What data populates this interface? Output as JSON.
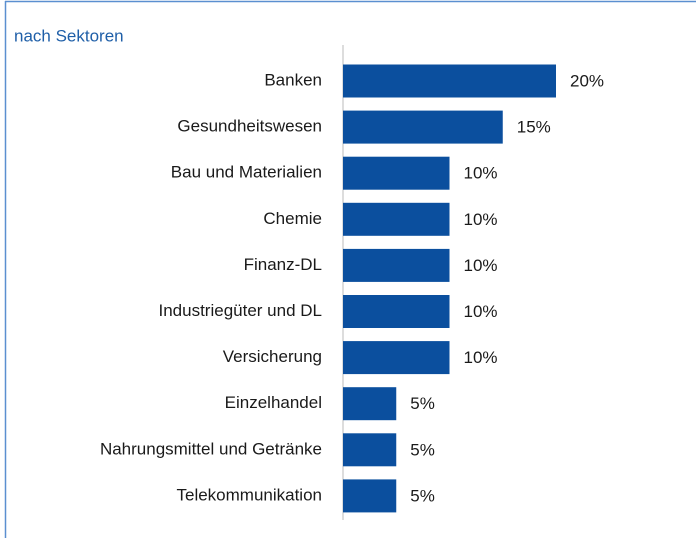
{
  "chart_data": {
    "type": "barh",
    "title": "nach Sektoren",
    "categories": [
      "Banken",
      "Gesundheitswesen",
      "Bau und Materialien",
      "Chemie",
      "Finanz-DL",
      "Industriegüter und DL",
      "Versicherung",
      "Einzelhandel",
      "Nahrungsmittel und Getränke",
      "Telekommunikation"
    ],
    "values": [
      20,
      15,
      10,
      10,
      10,
      10,
      10,
      5,
      5,
      5
    ],
    "value_labels": [
      "20%",
      "15%",
      "10%",
      "10%",
      "10%",
      "10%",
      "10%",
      "5%",
      "5%",
      "5%"
    ],
    "color": "#0b4f9e"
  }
}
